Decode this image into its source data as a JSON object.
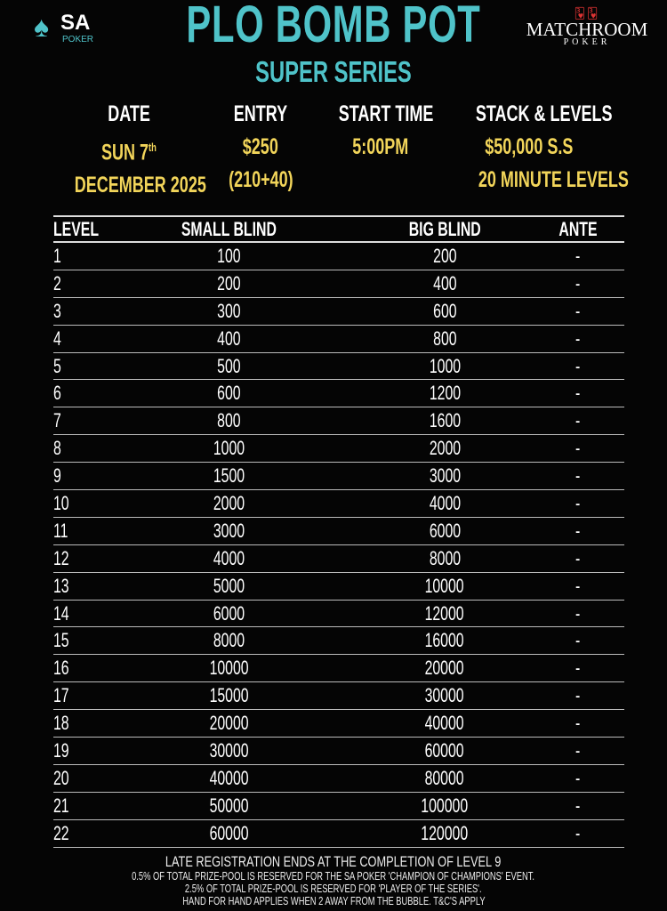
{
  "logos": {
    "left": "SA POKER",
    "left_sub": "POKER",
    "left_main": "SA",
    "right_main": "MATCHROOM",
    "right_sub": "POKER"
  },
  "colors": {
    "title": "#4fc3c9",
    "values": "#f2d55a",
    "background": "#050505"
  },
  "header": {
    "title": "PLO BOMB POT",
    "subtitle": "SUPER SERIES"
  },
  "info": [
    {
      "label": "DATE",
      "line1": "SUN 7",
      "sup": "th",
      "line2": "DECEMBER 2025"
    },
    {
      "label": "ENTRY",
      "line1": "$250",
      "line2": "(210+40)"
    },
    {
      "label": "START TIME",
      "line1": "5:00PM",
      "line2": ""
    },
    {
      "label": "STACK & LEVELS",
      "line1": "$50,000 S.S",
      "line2": "20 MINUTE LEVELS"
    }
  ],
  "table": {
    "headers": [
      "LEVEL",
      "SMALL BLIND",
      "BIG BLIND",
      "ANTE"
    ],
    "rows": [
      [
        "1",
        "100",
        "200",
        "-"
      ],
      [
        "2",
        "200",
        "400",
        "-"
      ],
      [
        "3",
        "300",
        "600",
        "-"
      ],
      [
        "4",
        "400",
        "800",
        "-"
      ],
      [
        "5",
        "500",
        "1000",
        "-"
      ],
      [
        "6",
        "600",
        "1200",
        "-"
      ],
      [
        "7",
        "800",
        "1600",
        "-"
      ],
      [
        "8",
        "1000",
        "2000",
        "-"
      ],
      [
        "9",
        "1500",
        "3000",
        "-"
      ],
      [
        "10",
        "2000",
        "4000",
        "-"
      ],
      [
        "11",
        "3000",
        "6000",
        "-"
      ],
      [
        "12",
        "4000",
        "8000",
        "-"
      ],
      [
        "13",
        "5000",
        "10000",
        "-"
      ],
      [
        "14",
        "6000",
        "12000",
        "-"
      ],
      [
        "15",
        "8000",
        "16000",
        "-"
      ],
      [
        "16",
        "10000",
        "20000",
        "-"
      ],
      [
        "17",
        "15000",
        "30000",
        "-"
      ],
      [
        "18",
        "20000",
        "40000",
        "-"
      ],
      [
        "19",
        "30000",
        "60000",
        "-"
      ],
      [
        "20",
        "40000",
        "80000",
        "-"
      ],
      [
        "21",
        "50000",
        "100000",
        "-"
      ],
      [
        "22",
        "60000",
        "120000",
        "-"
      ]
    ]
  },
  "footer": [
    "LATE REGISTRATION ENDS AT THE COMPLETION OF LEVEL 9",
    "0.5% OF TOTAL PRIZE-POOL IS RESERVED FOR THE SA POKER 'CHAMPION OF CHAMPIONS' EVENT.",
    "2.5% OF TOTAL PRIZE-POOL IS RESERVED FOR 'PLAYER OF THE SERIES'.",
    "HAND FOR HAND APPLIES WHEN 2 AWAY FROM THE BUBBLE. T&C'S APPLY"
  ]
}
